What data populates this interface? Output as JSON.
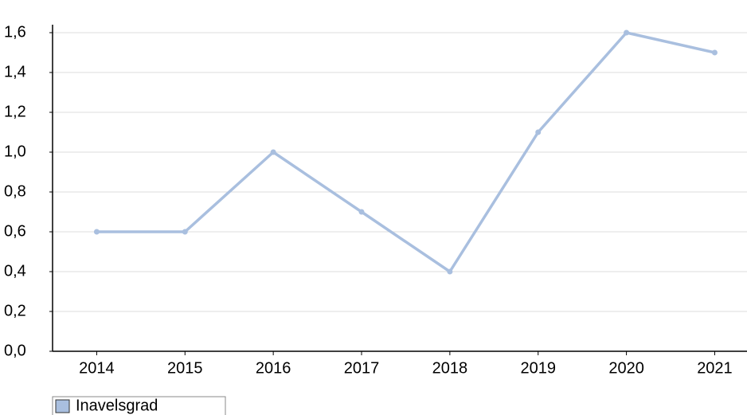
{
  "chart_data": {
    "type": "line",
    "categories": [
      "2014",
      "2015",
      "2016",
      "2017",
      "2018",
      "2019",
      "2020",
      "2021"
    ],
    "series": [
      {
        "name": "Inavelsgrad",
        "color": "#a9bfdf",
        "values": [
          0.6,
          0.6,
          1.0,
          0.7,
          0.4,
          1.1,
          1.6,
          1.5
        ]
      }
    ],
    "ylim": [
      0,
      1.6
    ],
    "yticks": [
      {
        "value": 0,
        "label": "0,0"
      },
      {
        "value": 0.2,
        "label": "0,2"
      },
      {
        "value": 0.4,
        "label": "0,4"
      },
      {
        "value": 0.6,
        "label": "0,6"
      },
      {
        "value": 0.8,
        "label": "0,8"
      },
      {
        "value": 1.0,
        "label": "1,0"
      },
      {
        "value": 1.2,
        "label": "1,2"
      },
      {
        "value": 1.4,
        "label": "1,4"
      },
      {
        "value": 1.6,
        "label": "1,6"
      }
    ],
    "grid": true,
    "legend": "bottom-left"
  }
}
